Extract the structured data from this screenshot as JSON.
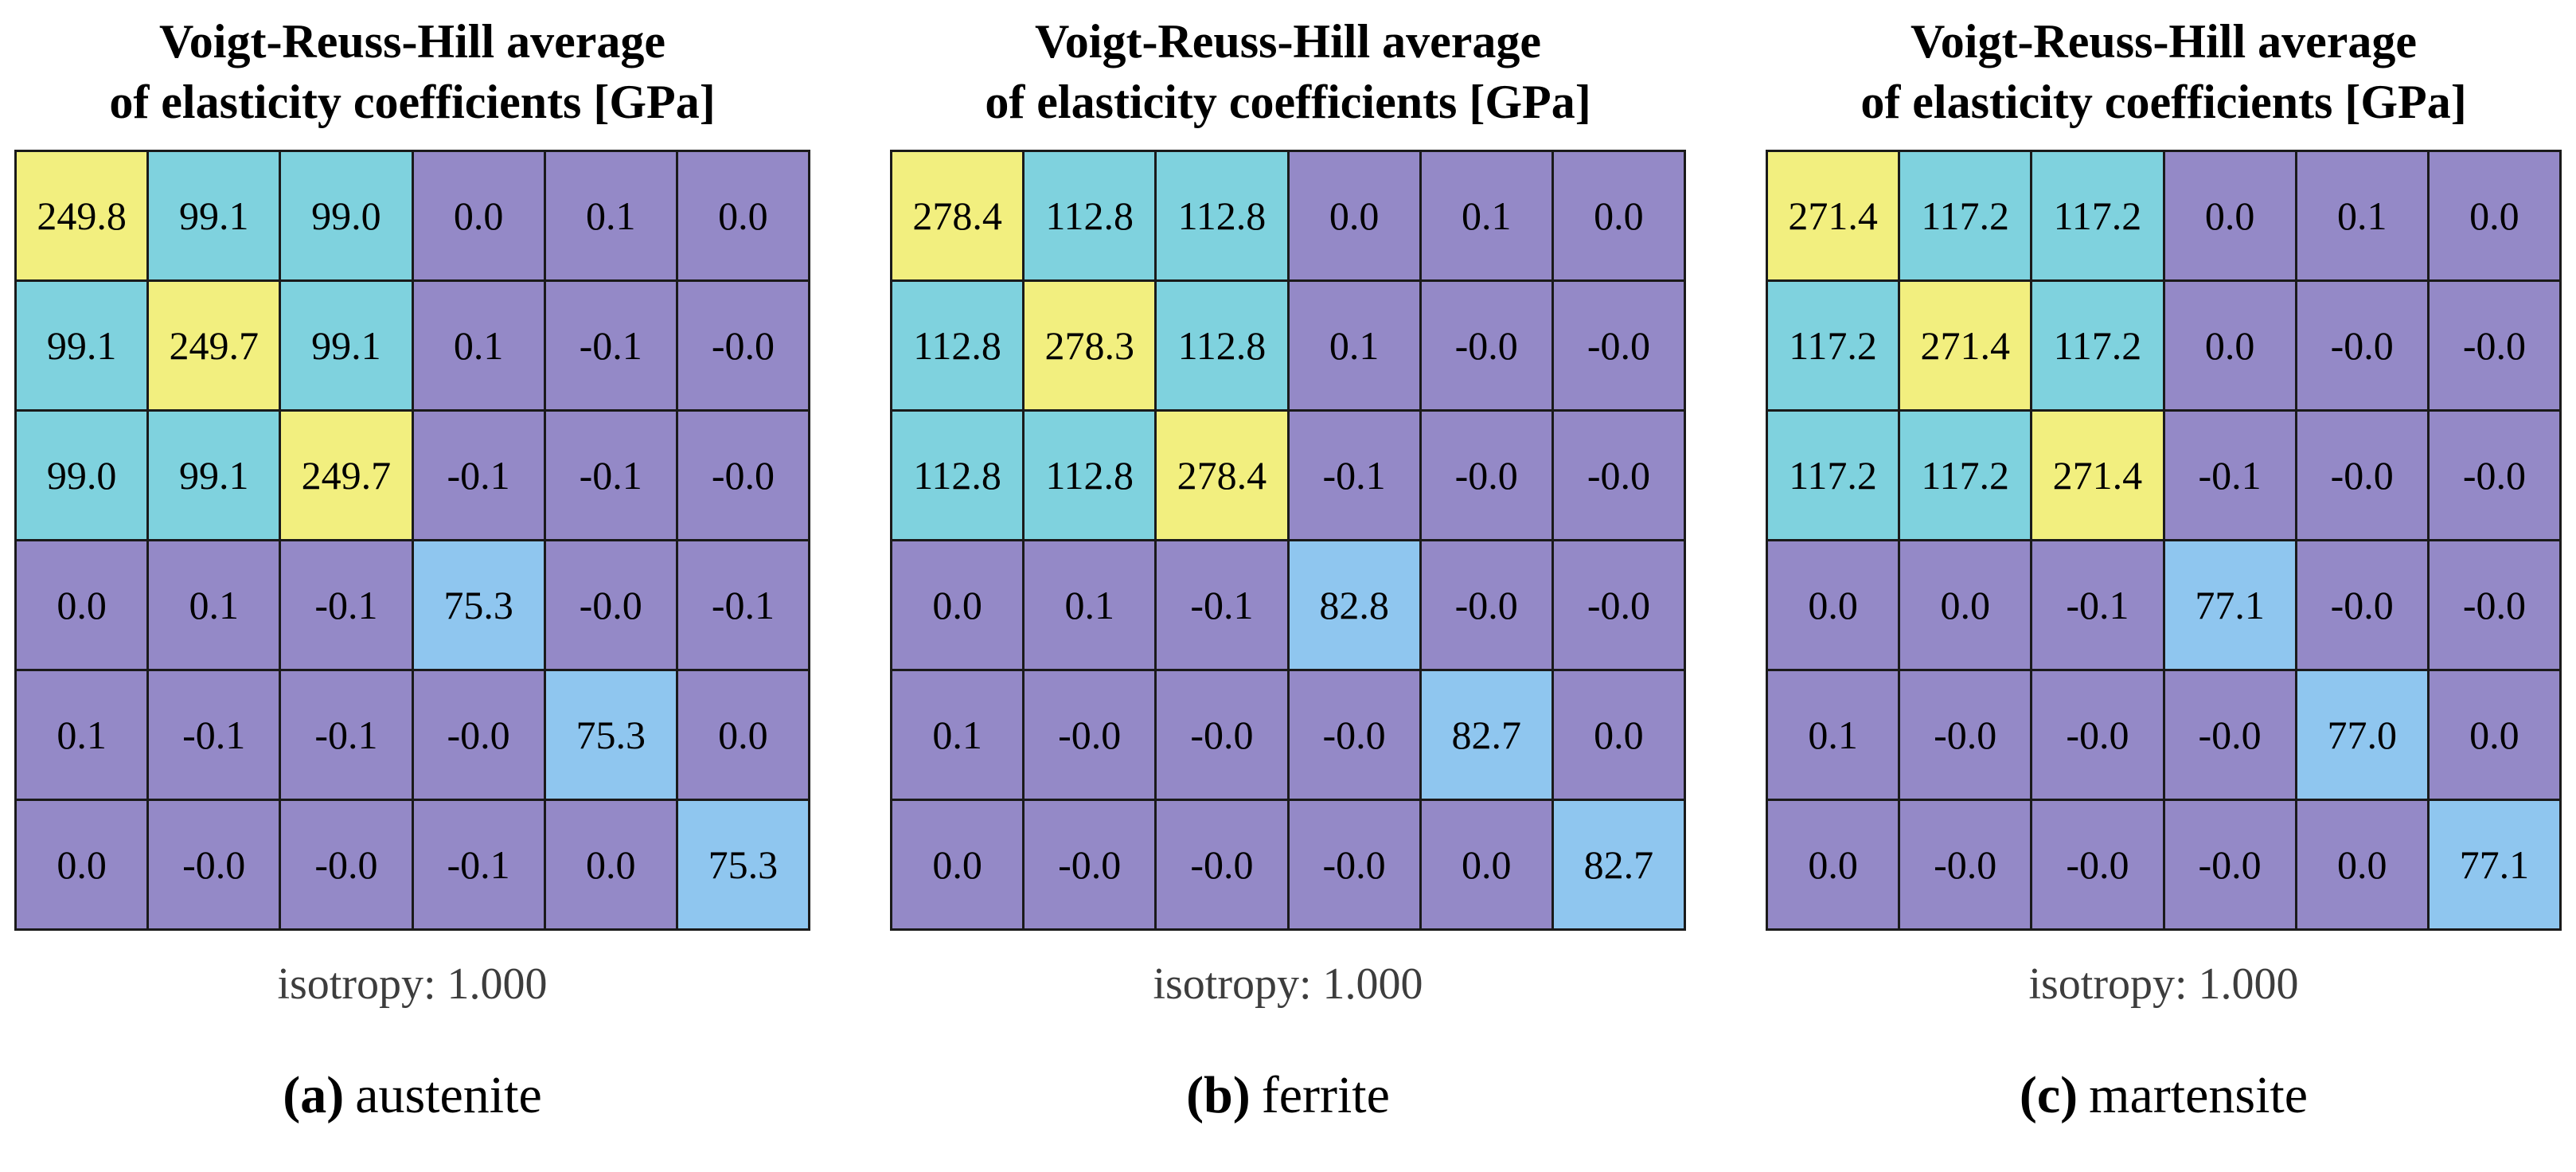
{
  "colors": {
    "diagonal_upper": "#f2ef7f",
    "offdiag_upper": "#7fd2de",
    "diagonal_lower": "#8fc6ef",
    "background_cell": "#9489c7",
    "grid_line": "#1a1a1a",
    "isotropy_text": "#3d3d3d",
    "text": "#000000"
  },
  "panels": [
    {
      "id": "austenite",
      "title_line1": "Voigt-Reuss-Hill average",
      "title_line2": "of elasticity coefficients [GPa]",
      "isotropy_label": "isotropy: 1.000",
      "caption_label": "(a)",
      "caption_text": "austenite",
      "matrix": [
        [
          "249.8",
          "99.1",
          "99.0",
          "0.0",
          "0.1",
          "0.0"
        ],
        [
          "99.1",
          "249.7",
          "99.1",
          "0.1",
          "-0.1",
          "-0.0"
        ],
        [
          "99.0",
          "99.1",
          "249.7",
          "-0.1",
          "-0.1",
          "-0.0"
        ],
        [
          "0.0",
          "0.1",
          "-0.1",
          "75.3",
          "-0.0",
          "-0.1"
        ],
        [
          "0.1",
          "-0.1",
          "-0.1",
          "-0.0",
          "75.3",
          "0.0"
        ],
        [
          "0.0",
          "-0.0",
          "-0.0",
          "-0.1",
          "0.0",
          "75.3"
        ]
      ]
    },
    {
      "id": "ferrite",
      "title_line1": "Voigt-Reuss-Hill average",
      "title_line2": "of elasticity coefficients [GPa]",
      "isotropy_label": "isotropy: 1.000",
      "caption_label": "(b)",
      "caption_text": "ferrite",
      "matrix": [
        [
          "278.4",
          "112.8",
          "112.8",
          "0.0",
          "0.1",
          "0.0"
        ],
        [
          "112.8",
          "278.3",
          "112.8",
          "0.1",
          "-0.0",
          "-0.0"
        ],
        [
          "112.8",
          "112.8",
          "278.4",
          "-0.1",
          "-0.0",
          "-0.0"
        ],
        [
          "0.0",
          "0.1",
          "-0.1",
          "82.8",
          "-0.0",
          "-0.0"
        ],
        [
          "0.1",
          "-0.0",
          "-0.0",
          "-0.0",
          "82.7",
          "0.0"
        ],
        [
          "0.0",
          "-0.0",
          "-0.0",
          "-0.0",
          "0.0",
          "82.7"
        ]
      ]
    },
    {
      "id": "martensite",
      "title_line1": "Voigt-Reuss-Hill average",
      "title_line2": "of elasticity coefficients [GPa]",
      "isotropy_label": "isotropy: 1.000",
      "caption_label": "(c)",
      "caption_text": "martensite",
      "matrix": [
        [
          "271.4",
          "117.2",
          "117.2",
          "0.0",
          "0.1",
          "0.0"
        ],
        [
          "117.2",
          "271.4",
          "117.2",
          "0.0",
          "-0.0",
          "-0.0"
        ],
        [
          "117.2",
          "117.2",
          "271.4",
          "-0.1",
          "-0.0",
          "-0.0"
        ],
        [
          "0.0",
          "0.0",
          "-0.1",
          "77.1",
          "-0.0",
          "-0.0"
        ],
        [
          "0.1",
          "-0.0",
          "-0.0",
          "-0.0",
          "77.0",
          "0.0"
        ],
        [
          "0.0",
          "-0.0",
          "-0.0",
          "-0.0",
          "0.0",
          "77.1"
        ]
      ]
    }
  ],
  "chart_data": [
    {
      "type": "heatmap",
      "title": "Voigt-Reuss-Hill average of elasticity coefficients [GPa]",
      "subtitle": "(a) austenite",
      "annotation": "isotropy: 1.000",
      "rows": 6,
      "cols": 6,
      "values": [
        [
          249.8,
          99.1,
          99.0,
          0.0,
          0.1,
          0.0
        ],
        [
          99.1,
          249.7,
          99.1,
          0.1,
          -0.1,
          -0.0
        ],
        [
          99.0,
          99.1,
          249.7,
          -0.1,
          -0.1,
          -0.0
        ],
        [
          0.0,
          0.1,
          -0.1,
          75.3,
          -0.0,
          -0.1
        ],
        [
          0.1,
          -0.1,
          -0.1,
          -0.0,
          75.3,
          0.0
        ],
        [
          0.0,
          -0.0,
          -0.0,
          -0.1,
          0.0,
          75.3
        ]
      ],
      "color_coding": {
        "upper_block_diagonal_C11_C22_C33": "yellow",
        "upper_block_offdiagonal_C12_C13_C23": "cyan",
        "lower_block_diagonal_C44_C55_C66": "light-blue",
        "other": "purple"
      }
    },
    {
      "type": "heatmap",
      "title": "Voigt-Reuss-Hill average of elasticity coefficients [GPa]",
      "subtitle": "(b) ferrite",
      "annotation": "isotropy: 1.000",
      "rows": 6,
      "cols": 6,
      "values": [
        [
          278.4,
          112.8,
          112.8,
          0.0,
          0.1,
          0.0
        ],
        [
          112.8,
          278.3,
          112.8,
          0.1,
          -0.0,
          -0.0
        ],
        [
          112.8,
          112.8,
          278.4,
          -0.1,
          -0.0,
          -0.0
        ],
        [
          0.0,
          0.1,
          -0.1,
          82.8,
          -0.0,
          -0.0
        ],
        [
          0.1,
          -0.0,
          -0.0,
          -0.0,
          82.7,
          0.0
        ],
        [
          0.0,
          -0.0,
          -0.0,
          -0.0,
          0.0,
          82.7
        ]
      ],
      "color_coding": {
        "upper_block_diagonal_C11_C22_C33": "yellow",
        "upper_block_offdiagonal_C12_C13_C23": "cyan",
        "lower_block_diagonal_C44_C55_C66": "light-blue",
        "other": "purple"
      }
    },
    {
      "type": "heatmap",
      "title": "Voigt-Reuss-Hill average of elasticity coefficients [GPa]",
      "subtitle": "(c) martensite",
      "annotation": "isotropy: 1.000",
      "rows": 6,
      "cols": 6,
      "values": [
        [
          271.4,
          117.2,
          117.2,
          0.0,
          0.1,
          0.0
        ],
        [
          117.2,
          271.4,
          117.2,
          0.0,
          -0.0,
          -0.0
        ],
        [
          117.2,
          117.2,
          271.4,
          -0.1,
          -0.0,
          -0.0
        ],
        [
          0.0,
          0.0,
          -0.1,
          77.1,
          -0.0,
          -0.0
        ],
        [
          0.1,
          -0.0,
          -0.0,
          -0.0,
          77.0,
          0.0
        ],
        [
          0.0,
          -0.0,
          -0.0,
          -0.0,
          0.0,
          77.1
        ]
      ],
      "color_coding": {
        "upper_block_diagonal_C11_C22_C33": "yellow",
        "upper_block_offdiagonal_C12_C13_C23": "cyan",
        "lower_block_diagonal_C44_C55_C66": "light-blue",
        "other": "purple"
      }
    }
  ]
}
